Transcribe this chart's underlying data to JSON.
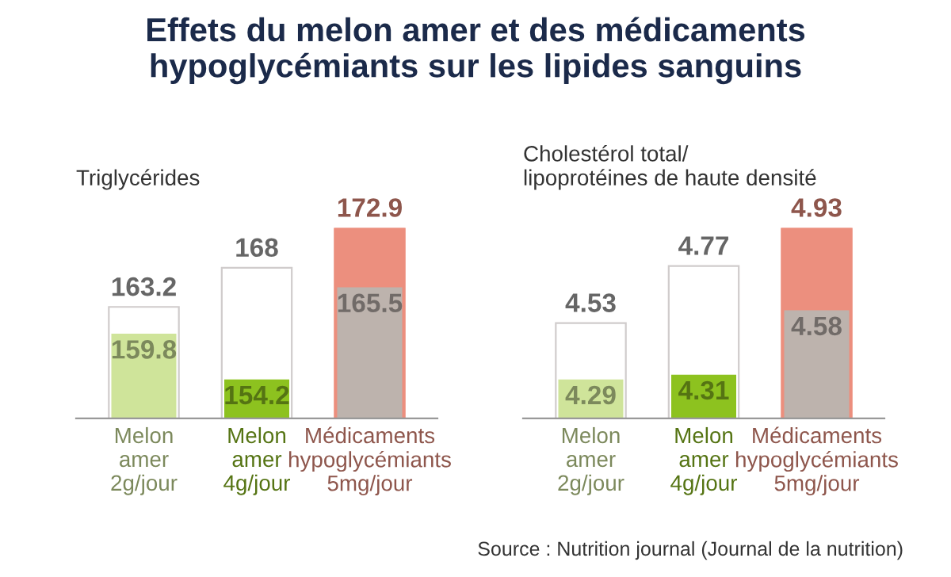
{
  "chart_data": [
    {
      "type": "bar",
      "title": "Effets du melon amer et des médicaments\nhypoglycémiants sur les lipides sanguins",
      "subtitle": "Triglycérides",
      "categories": [
        "Melon\namer\n2g/jour",
        "Melon\namer\n4g/jour",
        "Médicaments\nhypoglycémiants\n5mg/jour"
      ],
      "series": [
        {
          "colors": [
            "#ffffff",
            "#ffffff",
            "#ec8f7e"
          ],
          "values": [
            163.2,
            168,
            172.9
          ]
        },
        {
          "colors": [
            "#cfe49a",
            "#8dc21f",
            "#bdb3ad"
          ],
          "values": [
            159.8,
            154.2,
            165.5
          ]
        }
      ],
      "data_labels": true,
      "grid": false,
      "legend": false,
      "tick_labels": "x"
    },
    {
      "type": "bar",
      "subtitle": "Cholestérol total/\nlipoprotéines de haute densité",
      "categories": [
        "Melon\namer\n2g/jour",
        "Melon\namer\n4g/jour",
        "Médicaments\nhypoglycémiants\n5mg/jour"
      ],
      "series": [
        {
          "colors": [
            "#ffffff",
            "#ffffff",
            "#ec8f7e"
          ],
          "values": [
            4.53,
            4.77,
            4.93
          ]
        },
        {
          "colors": [
            "#cfe49a",
            "#8dc21f",
            "#bdb3ad"
          ],
          "values": [
            4.29,
            4.31,
            4.58
          ]
        }
      ],
      "data_labels": true,
      "grid": false,
      "legend": false,
      "tick_labels": "x",
      "annotations": [
        "Source : Nutrition journal (Journal de la nutrition)"
      ]
    }
  ]
}
